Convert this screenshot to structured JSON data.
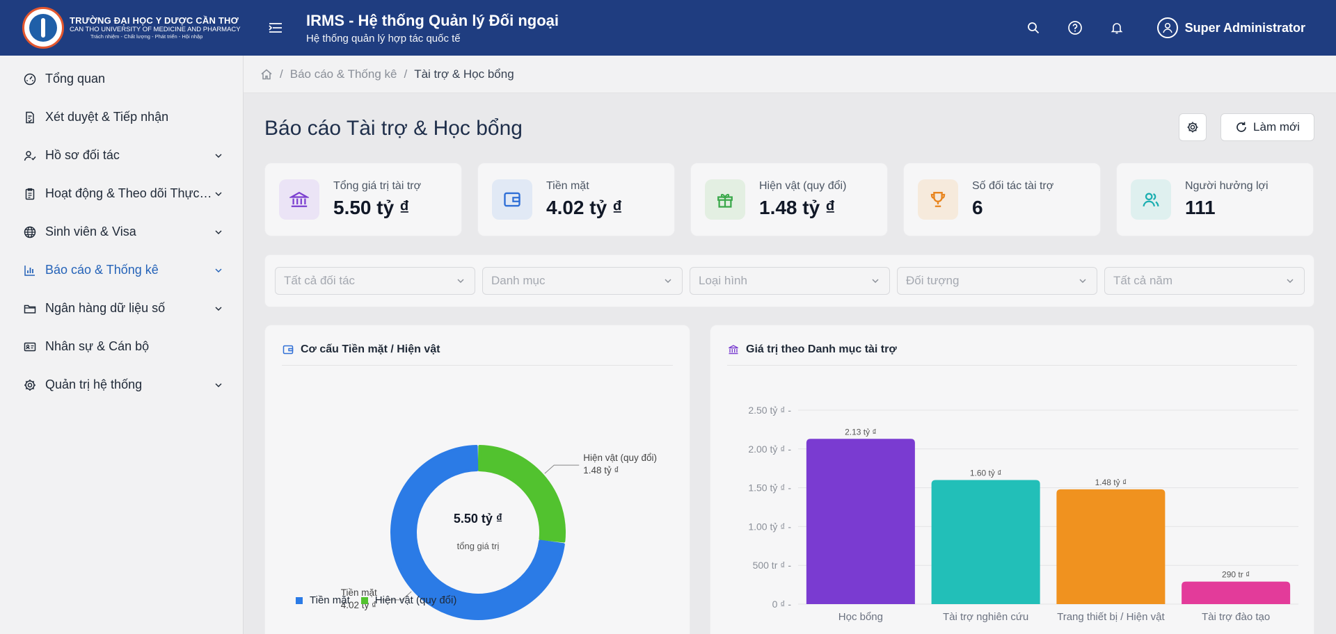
{
  "header": {
    "logo": {
      "line1": "TRƯỜNG ĐẠI HỌC Y DƯỢC CẦN THƠ",
      "line2": "CAN THO UNIVERSITY OF MEDICINE AND PHARMACY",
      "line3": "Trách nhiệm - Chất lượng - Phát triển - Hội nhập"
    },
    "title": "IRMS - Hệ thống Quản lý Đối ngoại",
    "subtitle": "Hệ thống quản lý hợp tác quốc tế",
    "icons": [
      "menu-icon",
      "search-icon",
      "help-icon",
      "bell-icon",
      "user-icon"
    ],
    "user_name": "Super Administrator"
  },
  "sidebar": {
    "items": [
      {
        "label": "Tổng quan",
        "icon": "dashboard-icon",
        "has_children": false,
        "active": false
      },
      {
        "label": "Xét duyệt & Tiếp nhận",
        "icon": "document-check-icon",
        "has_children": false,
        "active": false
      },
      {
        "label": "Hồ sơ đối tác",
        "icon": "partners-icon",
        "has_children": true,
        "active": false
      },
      {
        "label": "Hoạt động & Theo dõi Thực ...",
        "icon": "clipboard-icon",
        "has_children": true,
        "active": false
      },
      {
        "label": "Sinh viên & Visa",
        "icon": "globe-icon",
        "has_children": true,
        "active": false
      },
      {
        "label": "Báo cáo & Thống kê",
        "icon": "bar-chart-icon",
        "has_children": true,
        "active": true
      },
      {
        "label": "Ngân hàng dữ liệu số",
        "icon": "folder-icon",
        "has_children": true,
        "active": false
      },
      {
        "label": "Nhân sự & Cán bộ",
        "icon": "id-card-icon",
        "has_children": false,
        "active": false
      },
      {
        "label": "Quản trị hệ thống",
        "icon": "settings-icon",
        "has_children": true,
        "active": false
      }
    ]
  },
  "breadcrumb": {
    "home_icon": "home-icon",
    "items": [
      "Báo cáo & Thống kê",
      "Tài trợ & Học bổng"
    ],
    "separator": "/"
  },
  "page": {
    "title": "Báo cáo Tài trợ & Học bổng",
    "refresh_label": "Làm mới"
  },
  "stats": [
    {
      "label": "Tổng giá trị tài trợ",
      "value": "5.50 tỷ ₫",
      "icon": "bank-icon",
      "color": "#7b3fd0",
      "bg": "#ebe4f6"
    },
    {
      "label": "Tiền mặt",
      "value": "4.02 tỷ ₫",
      "icon": "wallet-icon",
      "color": "#2f6fd6",
      "bg": "#e1e9f5"
    },
    {
      "label": "Hiện vật (quy đổi)",
      "value": "1.48 tỷ ₫",
      "icon": "gift-icon",
      "color": "#3aa84a",
      "bg": "#e3efe2"
    },
    {
      "label": "Số đối tác tài trợ",
      "value": "6",
      "icon": "trophy-icon",
      "color": "#e8851f",
      "bg": "#f6eadc"
    },
    {
      "label": "Người hưởng lợi",
      "value": "111",
      "icon": "people-icon",
      "color": "#1aaeb0",
      "bg": "#dff0ef"
    }
  ],
  "filters": [
    "Tất cả đối tác",
    "Danh mục",
    "Loại hình",
    "Đối tượng",
    "Tất cả năm"
  ],
  "donut_card": {
    "title": "Cơ cấu Tiền mặt / Hiện vật",
    "icon": "wallet-icon",
    "center_value": "5.50 tỷ ₫",
    "center_label": "tổng giá trị"
  },
  "bar_card": {
    "title": "Giá trị theo Danh mục tài trợ",
    "icon": "bank-icon"
  },
  "chart_data": [
    {
      "type": "pie",
      "title": "Cơ cấu Tiền mặt / Hiện vật",
      "unit": "tỷ ₫",
      "categories": [
        "Tiền mặt",
        "Hiện vật (quy đổi)"
      ],
      "values": [
        4.02,
        1.48
      ],
      "value_labels": [
        "4.02 tỷ ₫",
        "1.48 tỷ ₫"
      ],
      "colors": [
        "#2b7be6",
        "#52c22f"
      ],
      "legend": "bottom-left"
    },
    {
      "type": "bar",
      "title": "Giá trị theo Danh mục tài trợ",
      "categories": [
        "Học bổng",
        "Tài trợ nghiên cứu",
        "Trang thiết bị / Hiện vật",
        "Tài trợ đào tạo"
      ],
      "values": [
        2.13,
        1.6,
        1.48,
        0.29
      ],
      "value_labels": [
        "2.13 tỷ ₫",
        "1.60 tỷ ₫",
        "1.48 tỷ ₫",
        "290 tr ₫"
      ],
      "colors": [
        "#7a3bd1",
        "#22bfb8",
        "#f0921f",
        "#e33b9a"
      ],
      "ylim": [
        0,
        2.5
      ],
      "yticks": [
        0,
        0.5,
        1.0,
        1.5,
        2.0,
        2.5
      ],
      "ytick_labels": [
        "0 ₫ -",
        "500 tr ₫ -",
        "1.00 tỷ ₫ -",
        "1.50 tỷ ₫ -",
        "2.00 tỷ ₫ -",
        "2.50 tỷ ₫ -"
      ],
      "grid": true
    }
  ]
}
